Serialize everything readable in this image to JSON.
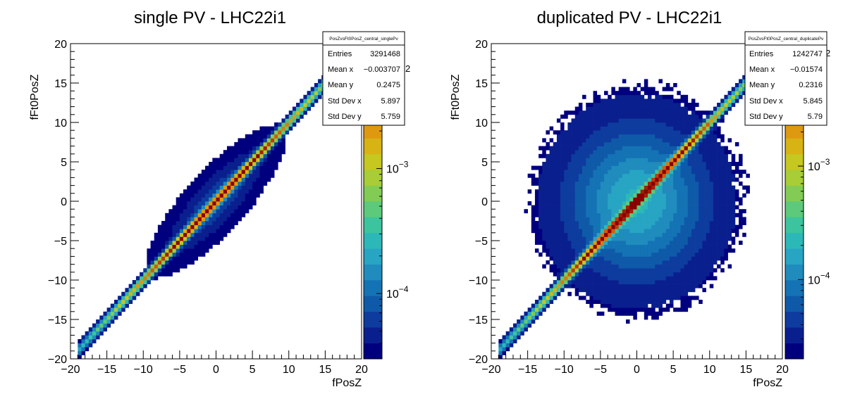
{
  "chart_data": [
    {
      "type": "heatmap",
      "title": "single PV - LHC22i1",
      "xlabel": "fPosZ",
      "ylabel": "fFt0PosZ",
      "xlim": [
        -20,
        20
      ],
      "ylim": [
        -20,
        20
      ],
      "x_ticks": [
        "−20",
        "−15",
        "−10",
        "−5",
        "0",
        "5",
        "10",
        "15",
        "20"
      ],
      "y_ticks": [
        "−20",
        "−15",
        "−10",
        "−5",
        "0",
        "5",
        "10",
        "15",
        "20"
      ],
      "color_scale": "log",
      "colorbar_ticks": [
        {
          "label": "10",
          "exp": "−3",
          "value": 0.001
        },
        {
          "label": "10",
          "exp": "−4",
          "value": 0.0001
        }
      ],
      "colorbar_visible_exp": "2",
      "colorbar_range": [
        3e-05,
        0.01
      ],
      "distribution": {
        "diag_sigma": 0.35,
        "halo_sigma_perp": 1.8,
        "halo_sigma_along": 5.8,
        "halo_amp": 0.15,
        "diag_extent": [
          -19,
          15
        ],
        "halo_threshold": 0.05
      },
      "stats": {
        "name": "PosZvsFt0PosZ_central_singlePv",
        "rows": [
          {
            "label": "Entries",
            "value": "3291468"
          },
          {
            "label": "Mean x",
            "value": "−0.003707"
          },
          {
            "label": "Mean y",
            "value": "0.2475"
          },
          {
            "label": "Std Dev x",
            "value": "5.897"
          },
          {
            "label": "Std Dev y",
            "value": "5.759"
          }
        ]
      }
    },
    {
      "type": "heatmap",
      "title": "duplicated PV - LHC22i1",
      "xlabel": "fPosZ",
      "ylabel": "fFt0PosZ",
      "xlim": [
        -20,
        20
      ],
      "ylim": [
        -20,
        20
      ],
      "x_ticks": [
        "−20",
        "−15",
        "−10",
        "−5",
        "0",
        "5",
        "10",
        "15",
        "20"
      ],
      "y_ticks": [
        "−20",
        "−15",
        "−10",
        "−5",
        "0",
        "5",
        "10",
        "15",
        "20"
      ],
      "color_scale": "log",
      "colorbar_ticks": [
        {
          "label": "10",
          "exp": "−3",
          "value": 0.001
        },
        {
          "label": "10",
          "exp": "−4",
          "value": 0.0001
        }
      ],
      "colorbar_visible_exp": "2",
      "colorbar_range": [
        2e-05,
        0.012
      ],
      "distribution": {
        "diag_sigma": 0.35,
        "blob_sigma": 6.2,
        "blob_amp": 0.34,
        "diag_extent": [
          -19,
          15
        ],
        "blob_radius": 14.5
      },
      "stats": {
        "name": "PosZvsFt0PosZ_central_duplicatePv",
        "rows": [
          {
            "label": "Entries",
            "value": "1242747"
          },
          {
            "label": "Mean x",
            "value": "−0.01574"
          },
          {
            "label": "Mean y",
            "value": "0.2316"
          },
          {
            "label": "Std Dev x",
            "value": "5.845"
          },
          {
            "label": "Std Dev y",
            "value": "5.79"
          }
        ]
      }
    }
  ],
  "palette": [
    "#00007f",
    "#0a1f8e",
    "#0d3c9e",
    "#0f5aa8",
    "#1473b4",
    "#1f8cbd",
    "#27a5c3",
    "#2db8b8",
    "#3cc49e",
    "#5dc97a",
    "#82cc56",
    "#a8cd36",
    "#c6c71f",
    "#d7b314",
    "#de9910",
    "#dc7a0c",
    "#d65a0a",
    "#c43b08",
    "#a81f05",
    "#8a0000"
  ]
}
